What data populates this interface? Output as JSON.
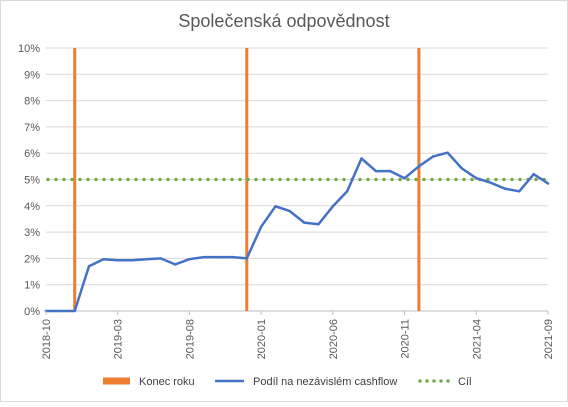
{
  "chart_data": {
    "type": "line",
    "title": "Společenská odpovědnost",
    "y_ticks": [
      "0%",
      "1%",
      "2%",
      "3%",
      "4%",
      "5%",
      "6%",
      "7%",
      "8%",
      "9%",
      "10%"
    ],
    "ylim": [
      0,
      10
    ],
    "y_unit": "%",
    "x_tick_labels": [
      "2018-10",
      "2019-03",
      "2019-08",
      "2020-01",
      "2020-06",
      "2020-11",
      "2021-04",
      "2021-09"
    ],
    "x_range": [
      "2018-10",
      "2021-09"
    ],
    "grid": true,
    "legend_position": "bottom",
    "series": [
      {
        "name": "Konec roku",
        "kind": "vertical-markers",
        "color": "#ED7D31",
        "x": [
          "2018-12",
          "2019-12",
          "2020-12"
        ]
      },
      {
        "name": "Podíl na nezávislém cashflow",
        "kind": "line",
        "color": "#4472C4",
        "x": [
          "2018-10",
          "2018-11",
          "2018-12",
          "2019-01",
          "2019-02",
          "2019-03",
          "2019-04",
          "2019-05",
          "2019-06",
          "2019-07",
          "2019-08",
          "2019-09",
          "2019-10",
          "2019-11",
          "2019-12",
          "2020-01",
          "2020-02",
          "2020-03",
          "2020-04",
          "2020-05",
          "2020-06",
          "2020-07",
          "2020-08",
          "2020-09",
          "2020-10",
          "2020-11",
          "2020-12",
          "2021-01",
          "2021-02",
          "2021-03",
          "2021-04",
          "2021-05",
          "2021-06",
          "2021-07",
          "2021-08",
          "2021-09"
        ],
        "values": [
          0,
          0,
          0,
          1.7,
          1.97,
          1.93,
          1.93,
          1.97,
          2.0,
          1.77,
          1.97,
          2.05,
          2.05,
          2.05,
          2.0,
          3.2,
          3.98,
          3.8,
          3.36,
          3.3,
          3.98,
          4.55,
          5.8,
          5.32,
          5.32,
          5.05,
          5.5,
          5.88,
          6.02,
          5.42,
          5.05,
          4.88,
          4.65,
          4.55,
          5.2,
          4.85
        ]
      },
      {
        "name": "Cíl",
        "kind": "dotted-line",
        "color": "#70AD47",
        "value": 5
      }
    ]
  }
}
